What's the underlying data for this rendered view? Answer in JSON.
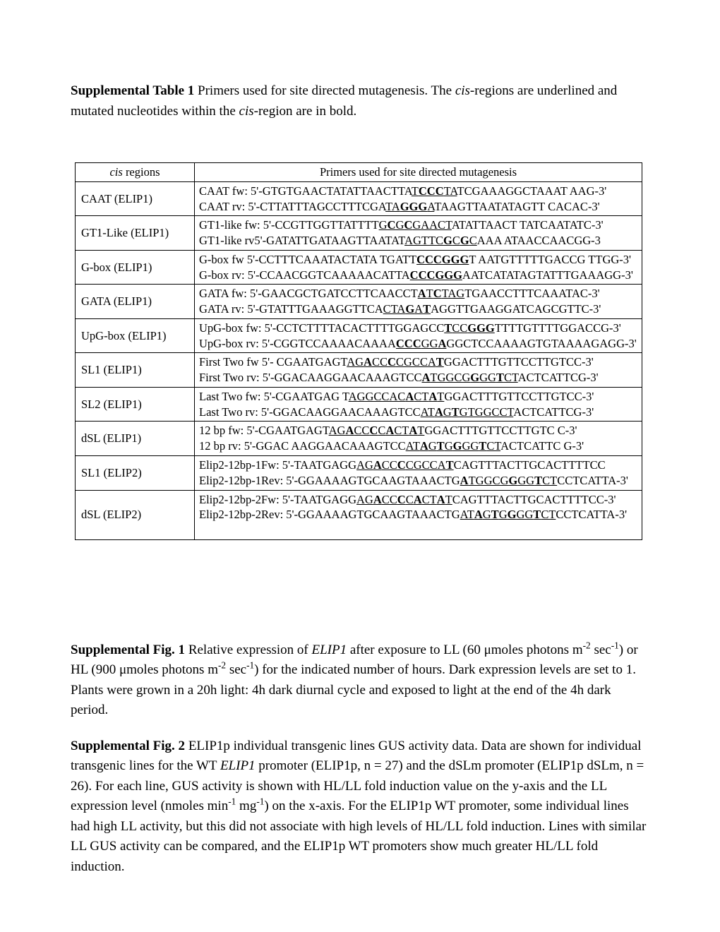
{
  "table_caption": {
    "label": "Supplemental Table 1",
    "text_before_cis": " Primers used for site directed mutagenesis. The ",
    "cis": "cis",
    "text_mid": "-regions are underlined and mutated nucleotides within the ",
    "cis2": "cis",
    "text_after": "-region are in bold."
  },
  "table": {
    "columns": {
      "col1_prefix": "cis",
      "col1_suffix": " regions",
      "col2": "Primers used for site directed mutagenesis"
    },
    "rows": [
      {
        "region": "CAAT (ELIP1)",
        "primers": [
          {
            "prefix": "CAAT fw: 5'-GTGTGAACTATATTAACTTA",
            "mut": {
              "pre": "T",
              "bold": "CCC",
              "post": "TA"
            },
            "suffix": "TCGAAAGGCTAAAT AAG-3'"
          },
          {
            "prefix": "CAAT rv: 5'-CTTATTTAGCCTTTCGA",
            "mut": {
              "pre": "TA",
              "bold": "GGG",
              "post": "A"
            },
            "suffix": "TAAGTTAATATAGTT CACAC-3'"
          }
        ]
      },
      {
        "region": "GT1-Like (ELIP1)",
        "primers": [
          {
            "prefix": "GT1-like fw: 5'-CCGTTGGTTATTTT",
            "mut": {
              "pre": "G",
              "bold": "C",
              "mid": "G",
              "bold2": "C",
              "post": "GAACT"
            },
            "suffix": "ATATTAACT TATCAATATC-3'"
          },
          {
            "prefix": "GT1-like rv5'-GATATTGATAAGTTAATAT",
            "mut": {
              "pre": "AGTTC",
              "bold": "G",
              "mid": "C",
              "bold2": "G",
              "post": "C"
            },
            "suffix": "AAA ATAACCAACGG-3"
          }
        ]
      },
      {
        "region": "G-box (ELIP1)",
        "primers": [
          {
            "prefix": "G-box fw 5'-CCTTTCAAATACTATA TGATT",
            "mut": {
              "pre": "",
              "bold": "CCCGGG",
              "post": ""
            },
            "suffix": "T AATGTTTTTGACCG TTGG-3'"
          },
          {
            "prefix": "G-box rv: 5'-CCAACGGTCAAAAACATTA",
            "mut": {
              "pre": "",
              "bold": "CCCGGG",
              "post": ""
            },
            "suffix": "AATCATATAGTATTTGAAAGG-3'"
          }
        ]
      },
      {
        "region": "GATA (ELIP1)",
        "primers": [
          {
            "prefix": "GATA fw: 5'-GAACGCTGATCCTTCAACCT",
            "mut": {
              "pre": "",
              "bold": "A",
              "mid": "T",
              "bold2": "C",
              "post": "TAG"
            },
            "suffix": "TGAACCTTTCAAATAC-3'"
          },
          {
            "prefix": "GATA rv: 5'-GTATTTGAAAGGTTCA",
            "mut": {
              "pre": "CTA",
              "bold": "G",
              "mid": "A",
              "bold2": "T",
              "post": ""
            },
            "suffix": "AGGTTGAAGGATCAGCGTTC-3'"
          }
        ]
      },
      {
        "region": "UpG-box (ELIP1)",
        "primers": [
          {
            "prefix": "UpG-box fw: 5'-CCTCTTTTACACTTTTGGAGCC",
            "mut": {
              "pre": "",
              "bold": "T",
              "mid": "CC",
              "bold2": "GGG",
              "post": ""
            },
            "suffix": "TTTTGTTTTGGACCG-3'"
          },
          {
            "prefix": "UpG-box rv: 5'-CGGTCCAAAACAAAA",
            "mut": {
              "pre": "",
              "bold": "CCC",
              "mid": "GG",
              "bold2": "A",
              "post": ""
            },
            "suffix": "GGCTCCAAAAGTGTAAAAGAGG-3'"
          }
        ]
      },
      {
        "region": "SL1 (ELIP1)",
        "primers": [
          {
            "prefix": "First Two fw 5'- CGAATGAGT",
            "mut": {
              "pre": "AG",
              "bold": "A",
              "mid": "CC",
              "bold2": "C",
              "mid2": "CGCCA",
              "bold3": "T",
              "post": ""
            },
            "suffix": "GGACTTTGTTCCTTGTCC-3'"
          },
          {
            "prefix": "First Two rv: 5'-GGACAAGGAACAAAGTCC",
            "mut": {
              "pre": "",
              "bold": "A",
              "mid": "TGGCG",
              "bold2": "G",
              "mid2": "GG",
              "bold3": "T",
              "post": "CT"
            },
            "suffix": "ACTCATTCG-3'"
          }
        ]
      },
      {
        "region": "SL2 (ELIP1)",
        "primers": [
          {
            "prefix": "Last Two fw: 5'-CGAATGAG T",
            "mut": {
              "pre": "AGGCCAC",
              "bold": "A",
              "mid": "CT",
              "bold2": "A",
              "mid2": "T",
              "post": ""
            },
            "suffix": "GGACTTTGTTCCTTGTCC-3'"
          },
          {
            "prefix": "Last Two rv: 5'-GGACAAGGAACAAAGTCC",
            "mut": {
              "pre": "AT",
              "bold": "A",
              "mid": "G",
              "bold2": "T",
              "mid2": "GTGGCCT",
              "post": ""
            },
            "suffix": "ACTCATTCG-3'"
          }
        ]
      },
      {
        "region": "dSL (ELIP1)",
        "primers": [
          {
            "prefix": "12 bp fw: 5'-CGAATGAGT",
            "mut": {
              "pre": "AG",
              "bold": "A",
              "mid": "CC",
              "bold2": "C",
              "mid2": "C",
              "bold3": "A",
              "mid3": "CT",
              "bold4": "A",
              "mid4": "T",
              "post": ""
            },
            "suffix": "GGACTTTGTTCCTTGTC C-3'"
          },
          {
            "prefix": "12 bp rv: 5'-GGAC AAGGAACAAAGTCC",
            "mut": {
              "pre": "AT",
              "bold": "A",
              "mid": "G",
              "bold2": "T",
              "mid2": "G",
              "bold3": "G",
              "mid3": "GG",
              "bold4": "T",
              "mid4": "CT",
              "post": ""
            },
            "suffix": "ACTCATTC G-3'"
          }
        ]
      },
      {
        "region": "SL1 (ELIP2)",
        "primers": [
          {
            "prefix": "Elip2-12bp-1Fw: 5'-TAATGAGG",
            "mut": {
              "pre": "AG",
              "bold": "A",
              "mid": "CC",
              "bold2": "C",
              "mid2": "CGCCA",
              "bold3": "T",
              "post": ""
            },
            "suffix": "CAGTTTACTTGCACTTTTCC"
          },
          {
            "prefix": "Elip2-12bp-1Rev: 5'-GGAAAAGTGCAAGTAAACTG",
            "mut": {
              "pre": "",
              "bold": "A",
              "mid": "TGGCG",
              "bold2": "G",
              "mid2": "GG",
              "bold3": "T",
              "post": "CT"
            },
            "suffix": "CCTCATTA-3'"
          }
        ]
      },
      {
        "region": "dSL (ELIP2)",
        "primers": [
          {
            "prefix": "Elip2-12bp-2Fw: 5'-TAATGAGG",
            "mut": {
              "pre": "AG",
              "bold": "A",
              "mid": "CC",
              "bold2": "C",
              "mid2": "C",
              "bold3": "A",
              "mid3": "CT",
              "bold4": "A",
              "mid4": "T",
              "post": ""
            },
            "suffix": "CAGTTTACTTGCACTTTTCC-3'"
          },
          {
            "prefix": "Elip2-12bp-2Rev: 5'-GGAAAAGTGCAAGTAAACTG",
            "mut": {
              "pre": "AT",
              "bold": "A",
              "mid": "G",
              "bold2": "T",
              "mid2": "G",
              "bold3": "G",
              "mid3": "GG",
              "bold4": "T",
              "mid4": "CT",
              "post": ""
            },
            "suffix": "CCTCATTA-3'"
          }
        ],
        "trailing_blank": true
      }
    ]
  },
  "fig1": {
    "label": "Supplemental Fig. 1",
    "body_parts": [
      "  Relative expression of ",
      "ELIP1",
      " after exposure to LL (60 μmoles photons m",
      "-2",
      " sec",
      "-1",
      ") or HL (900 μmoles photons m",
      "-2",
      " sec",
      "-1",
      ") for the indicated number of hours.  Dark expression levels are set to 1.  Plants were grown in a 20h light: 4h dark diurnal cycle and exposed to light at the end of the 4h dark period."
    ]
  },
  "fig2": {
    "label": "Supplemental Fig. 2",
    "body_parts": [
      "  ELIP1p individual transgenic lines GUS activity data.  Data are shown for individual transgenic lines for the WT ",
      "ELIP1",
      " promoter (ELIP1p, n = 27) and the dSLm promoter (ELIP1p dSLm, n = 26).  For each line, GUS activity is shown with HL/LL fold induction value on the y-axis and the LL expression level (nmoles min",
      "-1",
      " mg",
      "-1",
      ") on the x-axis.  For the ELIP1p WT promoter, some individual lines had high LL activity, but this did not associate with high levels of HL/LL fold induction.  Lines with similar LL GUS activity can be compared, and the ELIP1p WT promoters show much greater HL/LL fold induction."
    ]
  }
}
